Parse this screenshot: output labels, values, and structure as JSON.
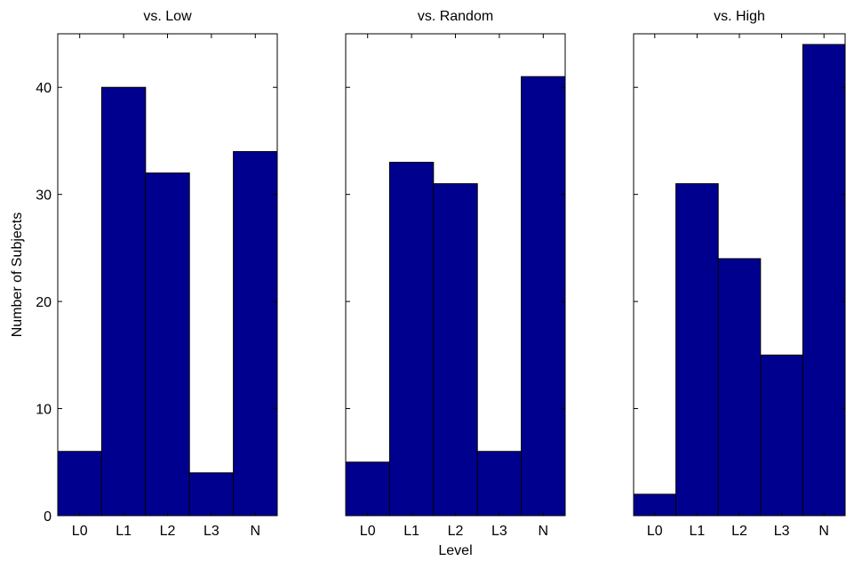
{
  "colors": {
    "bar": "#00008F",
    "axis": "#000000",
    "background": "#ffffff"
  },
  "chart_data": [
    {
      "type": "bar",
      "title": "vs. Low",
      "xlabel": "",
      "ylabel": "Number of Subjects",
      "categories": [
        "L0",
        "L1",
        "L2",
        "L3",
        "N"
      ],
      "values": [
        6,
        40,
        32,
        4,
        34
      ],
      "ylim": [
        0,
        45
      ],
      "yticks": [
        0,
        10,
        20,
        30,
        40
      ],
      "show_yticklabels": true,
      "grid": false
    },
    {
      "type": "bar",
      "title": "vs. Random",
      "xlabel": "Level",
      "ylabel": "",
      "categories": [
        "L0",
        "L1",
        "L2",
        "L3",
        "N"
      ],
      "values": [
        5,
        33,
        31,
        6,
        41
      ],
      "ylim": [
        0,
        45
      ],
      "yticks": [
        0,
        10,
        20,
        30,
        40
      ],
      "show_yticklabels": false,
      "grid": false
    },
    {
      "type": "bar",
      "title": "vs. High",
      "xlabel": "",
      "ylabel": "",
      "categories": [
        "L0",
        "L1",
        "L2",
        "L3",
        "N"
      ],
      "values": [
        2,
        31,
        24,
        15,
        44
      ],
      "ylim": [
        0,
        45
      ],
      "yticks": [
        0,
        10,
        20,
        30,
        40
      ],
      "show_yticklabels": false,
      "grid": false
    }
  ]
}
